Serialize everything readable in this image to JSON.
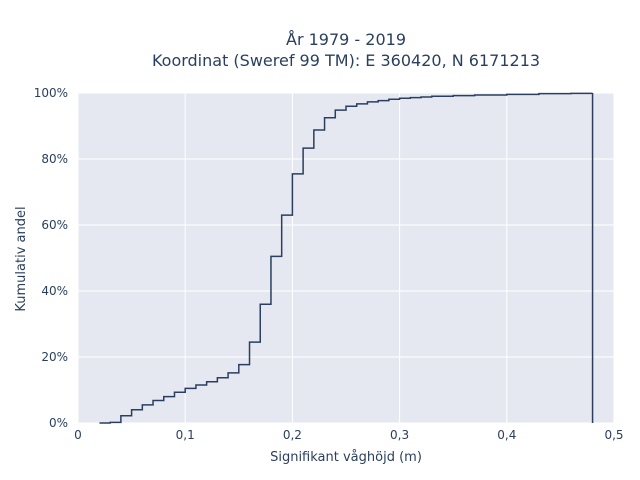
{
  "chart_data": {
    "type": "line",
    "title_line1": "År 1979 - 2019",
    "title_line2": "Koordinat (Sweref 99 TM): E 360420, N 6171213",
    "xlabel": "Signifikant våghöjd (m)",
    "ylabel": "Kumulativ andel",
    "xlim": [
      0,
      0.5
    ],
    "ylim": [
      0,
      1
    ],
    "x_ticks": [
      0,
      0.1,
      0.2,
      0.3,
      0.4,
      0.5
    ],
    "x_tick_labels": [
      "0",
      "0,1",
      "0,2",
      "0,3",
      "0,4",
      "0,5"
    ],
    "y_ticks": [
      0,
      0.2,
      0.4,
      0.6,
      0.8,
      1.0
    ],
    "y_tick_labels": [
      "0%",
      "20%",
      "40%",
      "60%",
      "80%",
      "100%"
    ],
    "grid": true,
    "line_shape": "step",
    "line_color": "#2a3f5f",
    "background_color": "#e5e8f0",
    "series": [
      {
        "x": [
          0.02,
          0.03,
          0.04,
          0.05,
          0.06,
          0.07,
          0.08,
          0.09,
          0.1,
          0.11,
          0.12,
          0.13,
          0.14,
          0.15,
          0.16,
          0.17,
          0.18,
          0.19,
          0.2,
          0.21,
          0.22,
          0.23,
          0.24,
          0.25,
          0.26,
          0.27,
          0.28,
          0.29,
          0.3,
          0.31,
          0.32,
          0.33,
          0.35,
          0.37,
          0.4,
          0.43,
          0.46,
          0.48
        ],
        "y": [
          0.0,
          0.002,
          0.022,
          0.04,
          0.055,
          0.068,
          0.08,
          0.093,
          0.105,
          0.115,
          0.125,
          0.137,
          0.152,
          0.177,
          0.245,
          0.36,
          0.505,
          0.63,
          0.755,
          0.833,
          0.888,
          0.925,
          0.948,
          0.96,
          0.967,
          0.973,
          0.977,
          0.981,
          0.984,
          0.986,
          0.988,
          0.99,
          0.992,
          0.994,
          0.996,
          0.998,
          0.999,
          1.0
        ]
      }
    ]
  }
}
